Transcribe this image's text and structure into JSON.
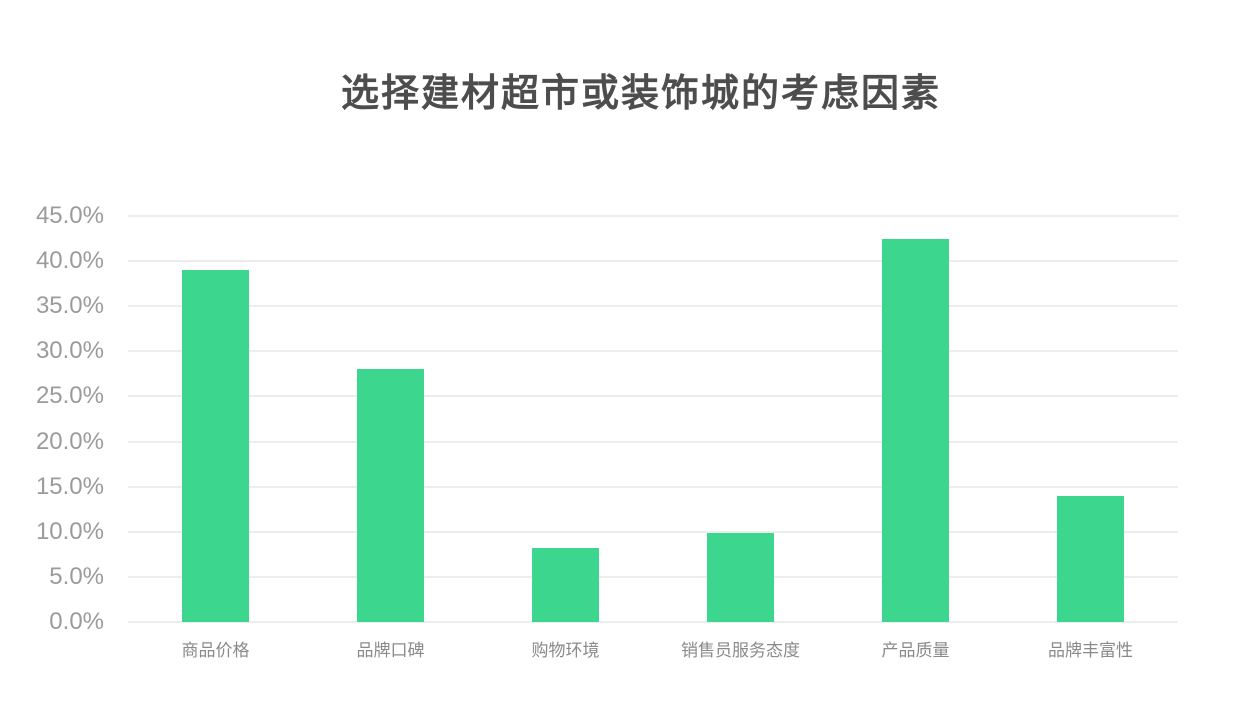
{
  "chart_data": {
    "type": "bar",
    "title": "选择建材超市或装饰城的考虑因素",
    "categories": [
      "商品价格",
      "品牌口碑",
      "购物环境",
      "销售员服务态度",
      "产品质量",
      "品牌丰富性"
    ],
    "values": [
      39.0,
      28.0,
      8.2,
      9.9,
      42.5,
      14.0
    ],
    "value_unit": "%",
    "ylim": [
      0,
      45
    ],
    "y_ticks": [
      {
        "value": 0,
        "label": "0.0%"
      },
      {
        "value": 5,
        "label": "5.0%"
      },
      {
        "value": 10,
        "label": "10.0%"
      },
      {
        "value": 15,
        "label": "15.0%"
      },
      {
        "value": 20,
        "label": "20.0%"
      },
      {
        "value": 25,
        "label": "25.0%"
      },
      {
        "value": 30,
        "label": "30.0%"
      },
      {
        "value": 35,
        "label": "35.0%"
      },
      {
        "value": 40,
        "label": "40.0%"
      },
      {
        "value": 45,
        "label": "45.0%"
      }
    ],
    "grid": true,
    "legend_position": "none",
    "colors": {
      "bar": "#3cd68f",
      "gridline": "#ededed",
      "title": "#4d4d4d",
      "y_tick_label": "#9b9b9b",
      "x_tick_label": "#8a8a8a",
      "background": "#ffffff"
    }
  }
}
